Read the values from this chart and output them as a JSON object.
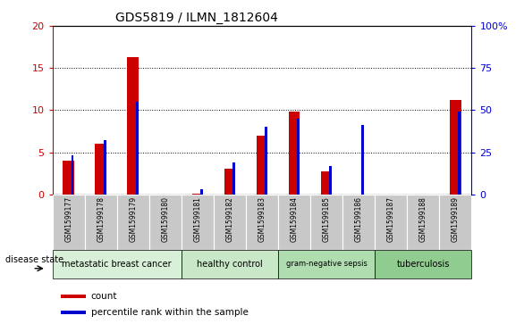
{
  "title": "GDS5819 / ILMN_1812604",
  "samples": [
    "GSM1599177",
    "GSM1599178",
    "GSM1599179",
    "GSM1599180",
    "GSM1599181",
    "GSM1599182",
    "GSM1599183",
    "GSM1599184",
    "GSM1599185",
    "GSM1599186",
    "GSM1599187",
    "GSM1599188",
    "GSM1599189"
  ],
  "count": [
    4.0,
    6.0,
    16.3,
    0.0,
    0.05,
    3.0,
    7.0,
    9.8,
    2.7,
    0.0,
    0.0,
    0.0,
    11.2
  ],
  "percentile": [
    23,
    32,
    55,
    0,
    3,
    19,
    40,
    45,
    17,
    41,
    0,
    0,
    49
  ],
  "groups": [
    {
      "label": "metastatic breast cancer",
      "start": 0,
      "end": 4,
      "color": "#d8f0d8"
    },
    {
      "label": "healthy control",
      "start": 4,
      "end": 7,
      "color": "#c8e8c8"
    },
    {
      "label": "gram-negative sepsis",
      "start": 7,
      "end": 10,
      "color": "#b0ddb0"
    },
    {
      "label": "tuberculosis",
      "start": 10,
      "end": 13,
      "color": "#90cc90"
    }
  ],
  "ylim_left": [
    0,
    20
  ],
  "ylim_right": [
    0,
    100
  ],
  "yticks_left": [
    0,
    5,
    10,
    15,
    20
  ],
  "yticks_right": [
    0,
    25,
    50,
    75,
    100
  ],
  "ytick_labels_right": [
    "0",
    "25",
    "50",
    "75",
    "100%"
  ],
  "bar_color_red": "#cc0000",
  "bar_color_blue": "#0000cc",
  "tick_bg_color": "#c8c8c8",
  "disease_state_label": "disease state",
  "legend_count": "count",
  "legend_percentile": "percentile rank within the sample"
}
